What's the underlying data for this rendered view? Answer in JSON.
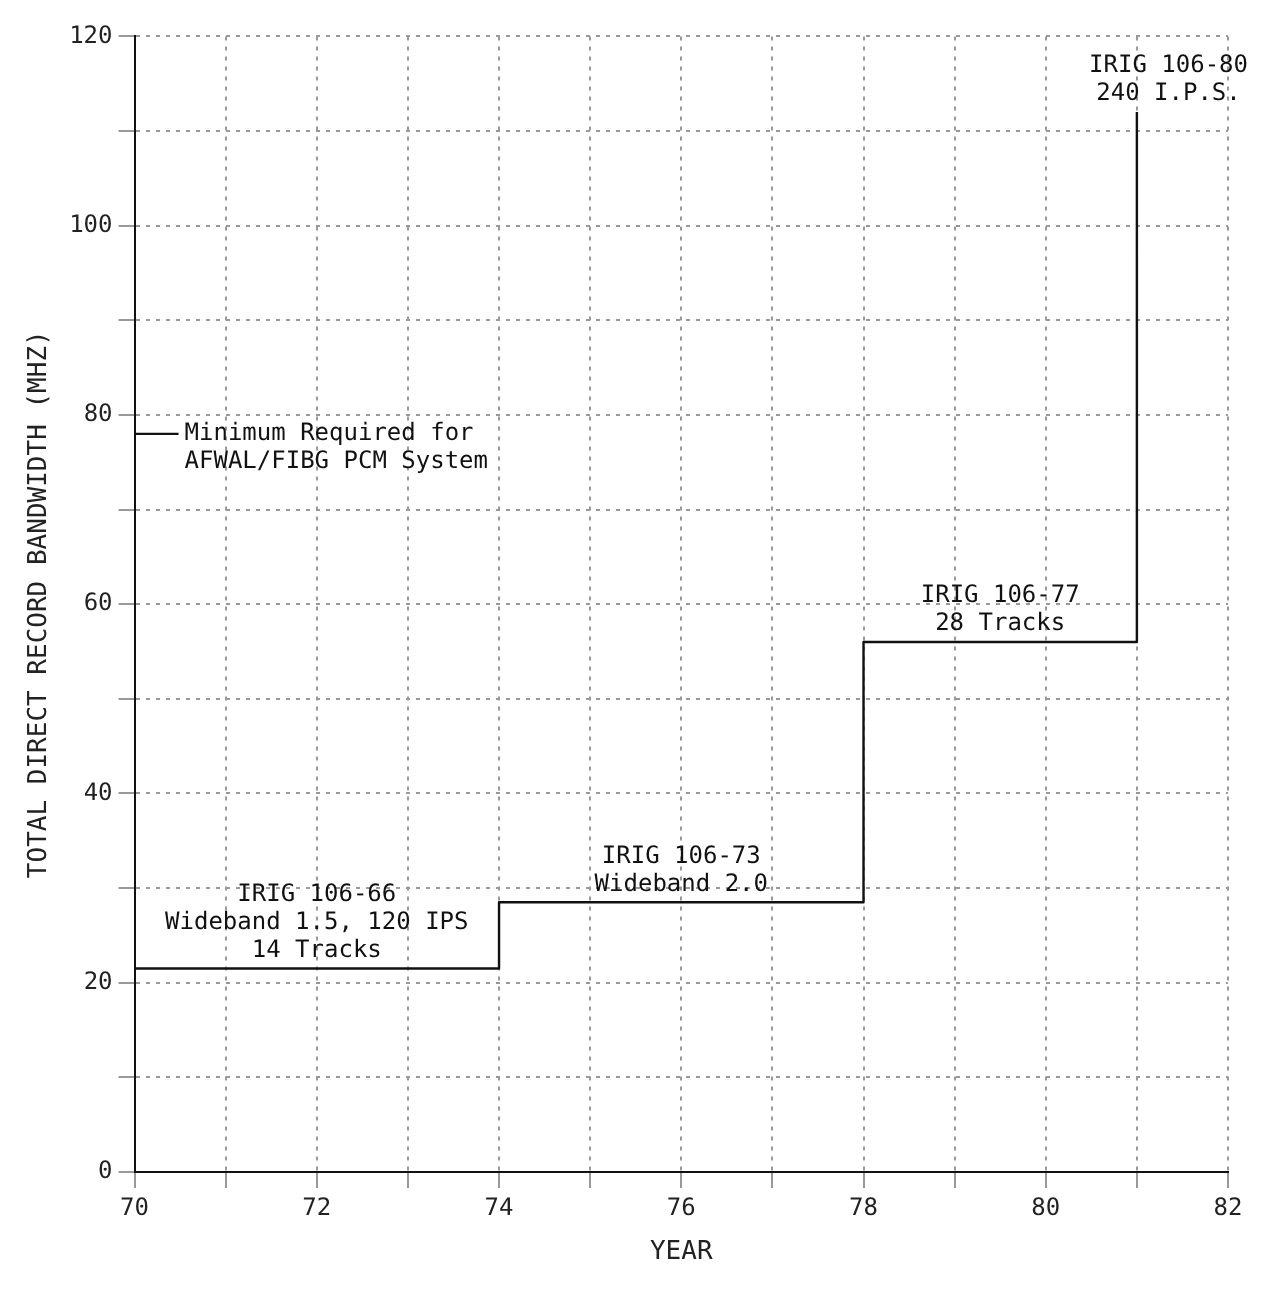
{
  "chart_data": {
    "type": "step",
    "xlabel": "YEAR",
    "ylabel": "TOTAL DIRECT RECORD BANDWIDTH (MHZ)",
    "x": [
      70,
      74,
      78,
      81
    ],
    "series": [
      {
        "color": "#111111",
        "values": [
          21.5,
          28.5,
          56,
          112
        ]
      }
    ],
    "xlim": [
      70,
      82
    ],
    "ylim": [
      0,
      120
    ],
    "xticks": [
      70,
      {
        "value": 71,
        "label": null
      },
      72,
      {
        "value": 73,
        "label": null
      },
      74,
      {
        "value": 75,
        "label": null
      },
      76,
      {
        "value": 77,
        "label": null
      },
      78,
      {
        "value": 79,
        "label": null
      },
      80,
      {
        "value": 81,
        "label": null
      },
      82
    ],
    "yticks": [
      0,
      {
        "value": 10,
        "label": null
      },
      20,
      {
        "value": 30,
        "label": null
      },
      40,
      {
        "value": 50,
        "label": null
      },
      60,
      {
        "value": 70,
        "label": null
      },
      80,
      {
        "value": 90,
        "label": null
      },
      100,
      {
        "value": 110,
        "label": null
      },
      120
    ],
    "grid": true,
    "legend": false,
    "ref_lines": [
      {
        "axis": "y",
        "value": 78,
        "label": "Minimum Required for\nAFWAL/FIBG PCM System"
      }
    ],
    "annotations": [
      "IRIG 106-66\nWideband 1.5, 120 IPS\n14 Tracks",
      "IRIG 106-73\nWideband 2.0",
      "IRIG 106-77\n28 Tracks",
      "IRIG 106-80\n240 I.P.S."
    ]
  }
}
